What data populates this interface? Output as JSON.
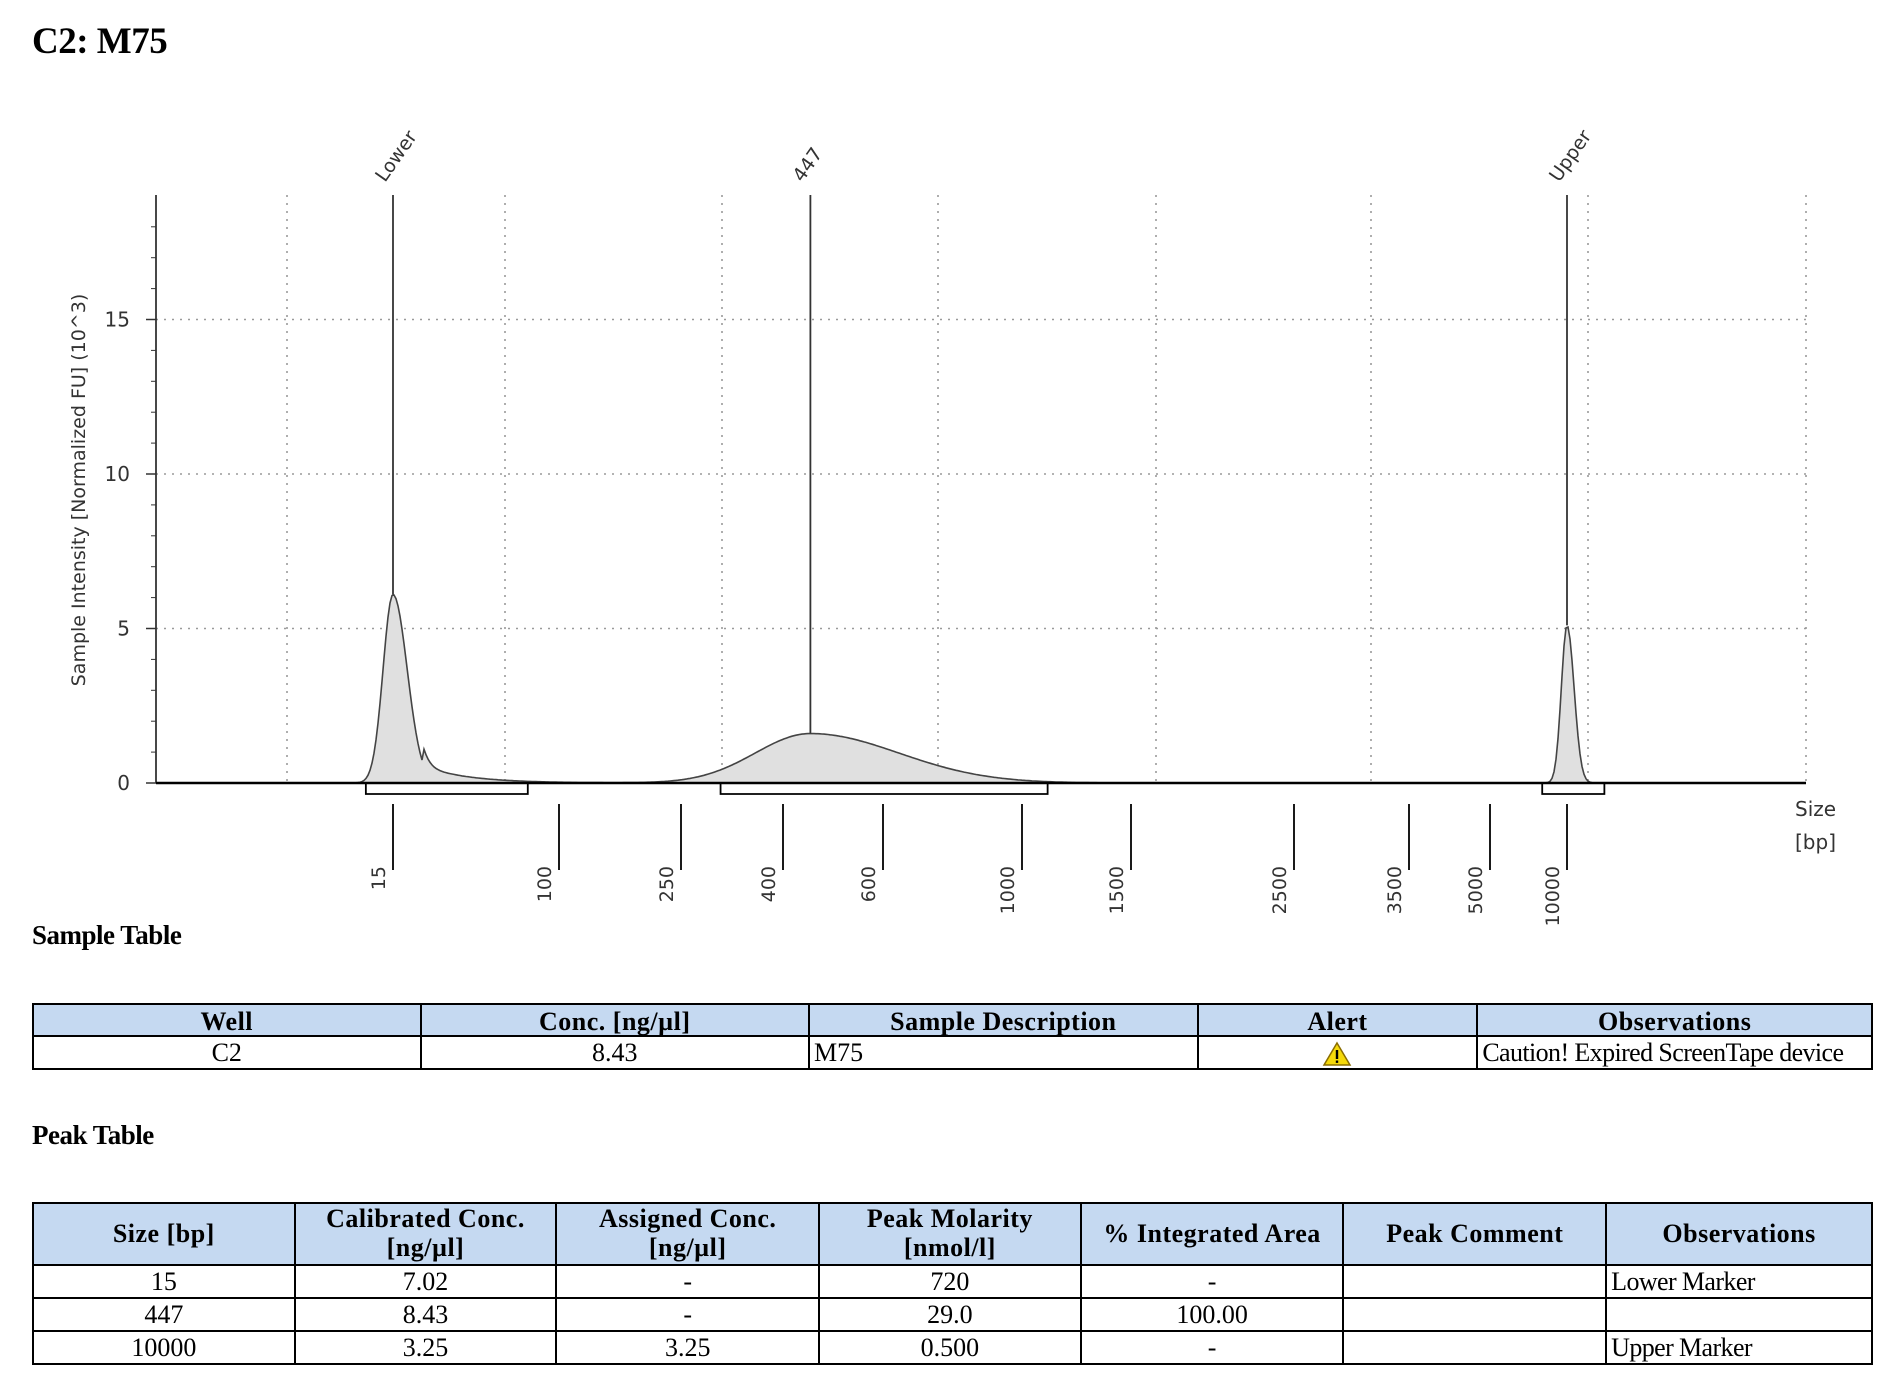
{
  "page_title": "C2: M75",
  "chart_data": {
    "type": "area",
    "ylabel": "Sample Intensity [Normalized FU] (10^3)",
    "xlabel": "Size\n[bp]",
    "xlabel_line1": "Size",
    "xlabel_line2": "[bp]",
    "ylim": [
      0,
      19
    ],
    "y_ticks": [
      "0",
      "5",
      "10",
      "15"
    ],
    "x_ticks": [
      "15",
      "100",
      "250",
      "400",
      "600",
      "1000",
      "1500",
      "2500",
      "3500",
      "5000",
      "10000"
    ],
    "grid": true,
    "fill_color": "#e0e0e0",
    "peaks": [
      {
        "label": "Lower",
        "size_bp": 15,
        "height": 6.1
      },
      {
        "label": "447",
        "size_bp": 447,
        "height": 1.6
      },
      {
        "label": "Upper",
        "size_bp": 10000,
        "height": 5.1
      }
    ],
    "region_brackets": [
      {
        "from_bp": 11,
        "to_bp": 70
      },
      {
        "from_bp": 300,
        "to_bp": 1100
      },
      {
        "from_bp": 8000,
        "to_bp": 14000
      }
    ]
  },
  "sample_table": {
    "title": "Sample Table",
    "headers": [
      "Well",
      "Conc. [ng/µl]",
      "Sample Description",
      "Alert",
      "Observations"
    ],
    "rows": [
      {
        "well": "C2",
        "conc": "8.43",
        "description": "M75",
        "alert": "warning-icon",
        "observations": "Caution! Expired ScreenTape device"
      }
    ]
  },
  "peak_table": {
    "title": "Peak Table",
    "headers": [
      [
        "Size [bp]"
      ],
      [
        "Calibrated Conc.",
        "[ng/µl]"
      ],
      [
        "Assigned Conc.",
        "[ng/µl]"
      ],
      [
        "Peak Molarity",
        "[nmol/l]"
      ],
      [
        "% Integrated Area"
      ],
      [
        "Peak Comment"
      ],
      [
        "Observations"
      ]
    ],
    "rows": [
      {
        "size": "15",
        "calibrated": "7.02",
        "assigned": "-",
        "molarity": "720",
        "area": "-",
        "comment": "",
        "observations": "Lower Marker"
      },
      {
        "size": "447",
        "calibrated": "8.43",
        "assigned": "-",
        "molarity": "29.0",
        "area": "100.00",
        "comment": "",
        "observations": ""
      },
      {
        "size": "10000",
        "calibrated": "3.25",
        "assigned": "3.25",
        "molarity": "0.500",
        "area": "-",
        "comment": "",
        "observations": "Upper Marker"
      }
    ]
  },
  "colors": {
    "header_bg": "#c5d9f1",
    "warning": "#f5d90a"
  }
}
